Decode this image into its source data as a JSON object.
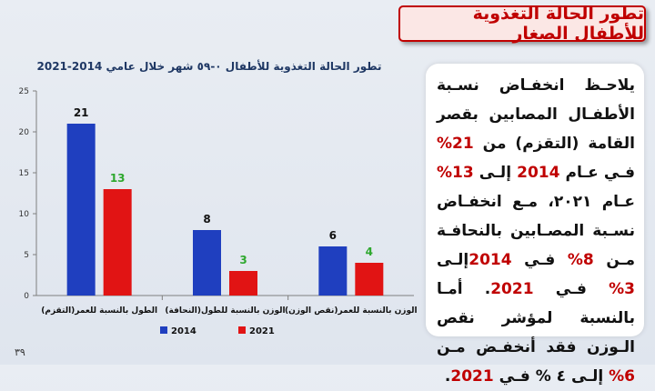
{
  "slide": {
    "title": "تطور الحالة التغذوية للأطفال الصغار",
    "page_number": "٣٩"
  },
  "chart_data": {
    "type": "bar",
    "title": "تطور الحالة التغذوية للأطفال ٠-٥٩ شهر خلال عامي 2014-2021",
    "categories": [
      "الطول بالنسبة للعمر(التقزم)",
      "الوزن بالنسبة للطول(النحافة)",
      "الوزن بالنسبة للعمر(نقص الوزن)"
    ],
    "series": [
      {
        "name": "2014",
        "values": [
          21,
          8,
          6
        ],
        "color": "#1f3fbf",
        "label_color": "#111111"
      },
      {
        "name": "2021",
        "values": [
          13,
          3,
          4
        ],
        "color": "#e11414",
        "label_color": "#2ea82e"
      }
    ],
    "ylim": [
      0,
      25
    ],
    "yticks": [
      0,
      5,
      10,
      15,
      20,
      25
    ],
    "grid": false,
    "legend": "bottom"
  },
  "panel": {
    "segments": [
      {
        "text": "يلاحـظ انخفـاض نسـبة الأطفـال المصابين بقصر القامة (التقزم) من ",
        "hl": false
      },
      {
        "text": "21%",
        "hl": true
      },
      {
        "text": " فـي عـام ",
        "hl": false
      },
      {
        "text": "2014",
        "hl": true
      },
      {
        "text": " إلـى ",
        "hl": false
      },
      {
        "text": "13%",
        "hl": true
      },
      {
        "text": " عـام ٢٠٢١، مـع انخفـاض نسـبة المصـابين بالنحافـة مـن ",
        "hl": false
      },
      {
        "text": "8%",
        "hl": true
      },
      {
        "text": " فـي ",
        "hl": false
      },
      {
        "text": "2014",
        "hl": true
      },
      {
        "text": "إلـى ",
        "hl": false
      },
      {
        "text": "3%",
        "hl": true
      },
      {
        "text": " فـي ",
        "hl": false
      },
      {
        "text": "2021",
        "hl": true
      },
      {
        "text": ". أمـا بالنسبة لمؤشر نقص الـوزن فقد أنخفـض مـن ",
        "hl": false
      },
      {
        "text": "6%",
        "hl": true
      },
      {
        "text": " إلـى ٤ % فـي ",
        "hl": false
      },
      {
        "text": "2021",
        "hl": true
      },
      {
        "text": ".",
        "hl": false
      }
    ]
  }
}
